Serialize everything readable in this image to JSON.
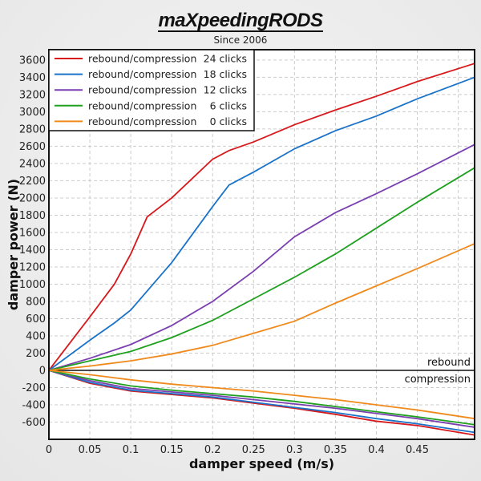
{
  "logo": {
    "brand": "maXpeedingRODS",
    "tagline": "Since 2006"
  },
  "chart_data": {
    "type": "line",
    "title": "",
    "xlabel": "damper speed (m/s)",
    "ylabel": "damper power (N)",
    "xlim": [
      0,
      0.52
    ],
    "ylim": [
      -800,
      3720
    ],
    "xticks": [
      "0",
      "0.05",
      "0.1",
      "0.15",
      "0.2",
      "0.25",
      "0.3",
      "0.35",
      "0.4",
      "0.45"
    ],
    "yticks": [
      "-600",
      "-400",
      "-200",
      "0",
      "200",
      "400",
      "600",
      "800",
      "1000",
      "1200",
      "1400",
      "1600",
      "1800",
      "2000",
      "2200",
      "2400",
      "2600",
      "2800",
      "3000",
      "3200",
      "3400",
      "3600"
    ],
    "grid": true,
    "legend_position": "top-left",
    "region_labels": {
      "rebound": "rebound",
      "compression": "compression"
    },
    "x": [
      0,
      0.05,
      0.1,
      0.15,
      0.2,
      0.25,
      0.3,
      0.35,
      0.4,
      0.45,
      0.52
    ],
    "series": [
      {
        "name": "rebound/compression",
        "clicks": "24 clicks",
        "color": "#d7191c",
        "rebound_x": [
          0,
          0.05,
          0.08,
          0.1,
          0.12,
          0.15,
          0.2,
          0.22,
          0.25,
          0.3,
          0.35,
          0.4,
          0.45,
          0.52
        ],
        "rebound": [
          0,
          620,
          1000,
          1350,
          1780,
          2000,
          2450,
          2550,
          2650,
          2850,
          3020,
          3180,
          3350,
          3560
        ],
        "compression": [
          0,
          -150,
          -240,
          -280,
          -320,
          -380,
          -440,
          -510,
          -590,
          -640,
          -750
        ]
      },
      {
        "name": "rebound/compression",
        "clicks": "18 clicks",
        "color": "#1a73c9",
        "rebound_x": [
          0,
          0.05,
          0.08,
          0.1,
          0.15,
          0.2,
          0.22,
          0.25,
          0.3,
          0.35,
          0.4,
          0.45,
          0.52
        ],
        "rebound": [
          0,
          350,
          550,
          700,
          1250,
          1900,
          2150,
          2300,
          2570,
          2780,
          2950,
          3150,
          3400
        ],
        "compression": [
          0,
          -140,
          -230,
          -270,
          -310,
          -370,
          -430,
          -490,
          -560,
          -620,
          -720
        ]
      },
      {
        "name": "rebound/compression",
        "clicks": "12 clicks",
        "color": "#7b3fb0",
        "rebound_x": [
          0,
          0.05,
          0.1,
          0.15,
          0.2,
          0.25,
          0.3,
          0.35,
          0.4,
          0.45,
          0.52
        ],
        "rebound": [
          0,
          140,
          300,
          520,
          800,
          1150,
          1550,
          1830,
          2050,
          2280,
          2620
        ],
        "compression": [
          0,
          -120,
          -210,
          -250,
          -290,
          -340,
          -390,
          -440,
          -500,
          -560,
          -660
        ]
      },
      {
        "name": "rebound/compression",
        "clicks": "6 clicks",
        "color": "#1fa01f",
        "rebound_x": [
          0,
          0.05,
          0.1,
          0.15,
          0.2,
          0.25,
          0.3,
          0.35,
          0.4,
          0.45,
          0.52
        ],
        "rebound": [
          0,
          110,
          220,
          380,
          580,
          830,
          1080,
          1350,
          1650,
          1950,
          2350
        ],
        "compression": [
          0,
          -100,
          -180,
          -230,
          -270,
          -310,
          -360,
          -420,
          -480,
          -540,
          -630
        ]
      },
      {
        "name": "rebound/compression",
        "clicks": "0 clicks",
        "color": "#f08a1c",
        "rebound_x": [
          0,
          0.05,
          0.1,
          0.15,
          0.2,
          0.25,
          0.3,
          0.35,
          0.4,
          0.45,
          0.52
        ],
        "rebound": [
          0,
          50,
          110,
          190,
          290,
          430,
          570,
          780,
          980,
          1180,
          1470
        ],
        "compression": [
          0,
          -50,
          -110,
          -160,
          -200,
          -240,
          -290,
          -340,
          -400,
          -460,
          -560
        ]
      }
    ]
  }
}
